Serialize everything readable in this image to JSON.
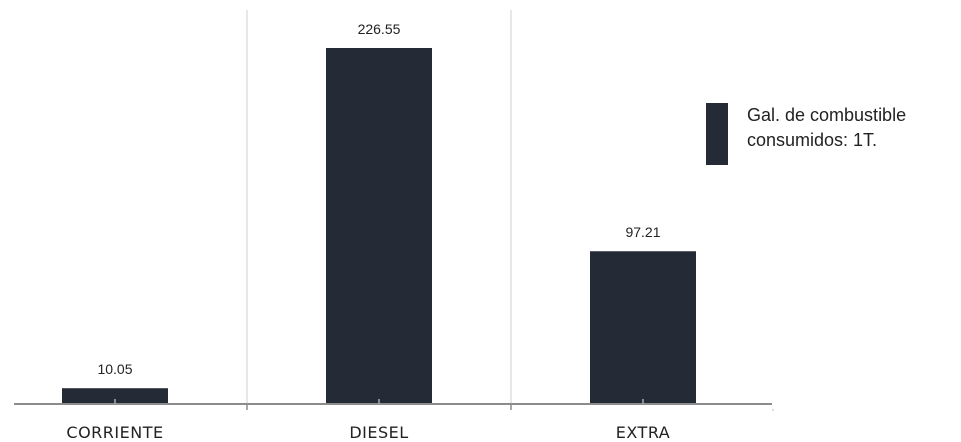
{
  "chart_data": {
    "type": "bar",
    "categories": [
      "CORRIENTE",
      "DIESEL",
      "EXTRA"
    ],
    "series": [
      {
        "name": "Gal. de combustible consumidos: 1T.",
        "values": [
          10.05,
          226.55,
          97.21
        ]
      }
    ],
    "data_labels": [
      "10.05",
      "226.55",
      "97.21"
    ],
    "legend_lines": [
      "Gal. de combustible",
      "consumidos:  1T."
    ],
    "legend_position": "right",
    "ylim": [
      0,
      240
    ],
    "grid": "vertical separators between categories",
    "colors": {
      "bar": "#252b36",
      "axis": "#8c8c8c",
      "separator": "#cfcfcf",
      "text": "#222222"
    }
  }
}
